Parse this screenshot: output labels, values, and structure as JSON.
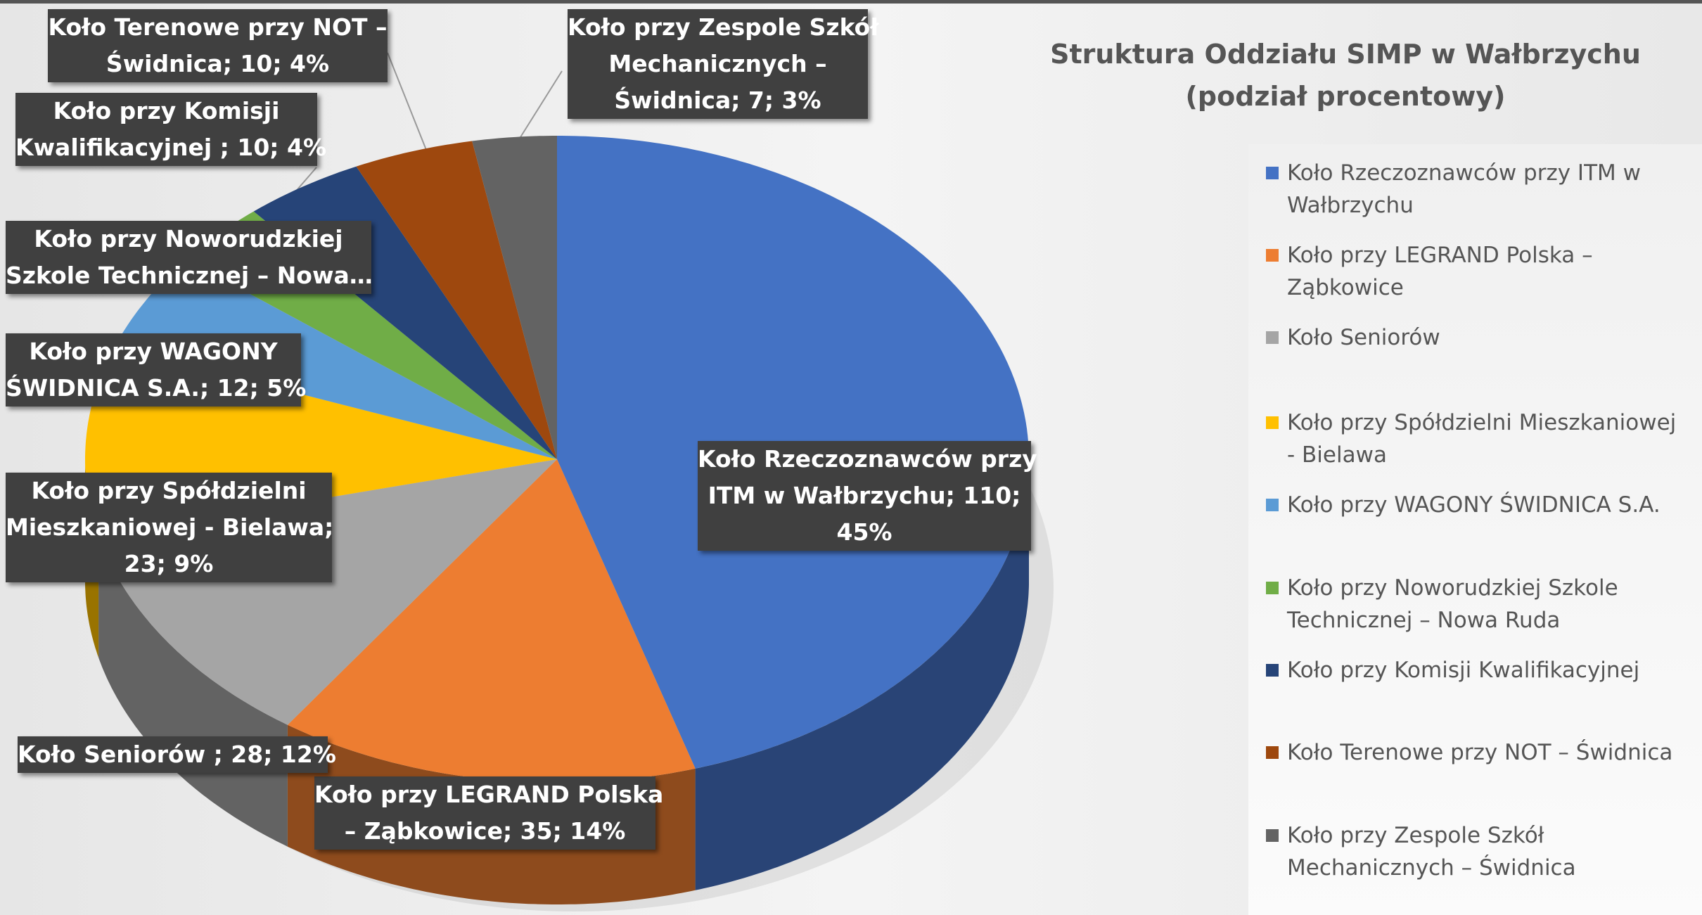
{
  "chart_data": {
    "type": "pie3d",
    "title": [
      "Struktura Oddziału SIMP w Wałbrzychu",
      "(podział procentowy)"
    ],
    "categories": [
      "Koło Rzeczoznawców przy ITM w Wałbrzychu",
      "Koło przy LEGRAND Polska – Ząbkowice",
      "Koło Seniorów",
      "Koło przy Spółdzielni Mieszkaniowej - Bielawa",
      "Koło przy WAGONY ŚWIDNICA S.A.",
      "Koło przy Noworudzkiej Szkole Technicznej – Nowa Ruda",
      "Koło przy Komisji Kwalifikacyjnej",
      "Koło Terenowe przy NOT – Świdnica",
      "Koło przy Zespole Szkół Mechanicznych – Świdnica"
    ],
    "values": [
      110,
      35,
      28,
      23,
      12,
      8,
      10,
      10,
      7
    ],
    "value_labels": [
      [
        "Koło Rzeczoznawców przy",
        "ITM w Wałbrzychu; 110;",
        "45%"
      ],
      [
        "Koło przy LEGRAND Polska",
        "– Ząbkowice; 35; 14%"
      ],
      [
        "Koło Seniorów ; 28; 12%"
      ],
      [
        "Koło przy Spółdzielni",
        "Mieszkaniowej - Bielawa;",
        "23; 9%"
      ],
      [
        "Koło przy WAGONY",
        "ŚWIDNICA S.A.; 12; 5%"
      ],
      [
        "Koło przy Noworudzkiej",
        "Szkole Technicznej – Nowa…"
      ],
      [
        "Koło przy Komisji",
        "Kwalifikacyjnej ; 10; 4%"
      ],
      [
        "Koło Terenowe przy NOT –",
        "Świdnica; 10; 4%"
      ],
      [
        "Koło przy Zespole Szkół",
        "Mechanicznych –",
        "Świdnica; 7; 3%"
      ]
    ],
    "colors": [
      "#4472c4",
      "#ed7d31",
      "#a5a5a5",
      "#ffc000",
      "#5b9bd5",
      "#70ad47",
      "#264478",
      "#9e480e",
      "#636363"
    ],
    "legend": "right"
  }
}
